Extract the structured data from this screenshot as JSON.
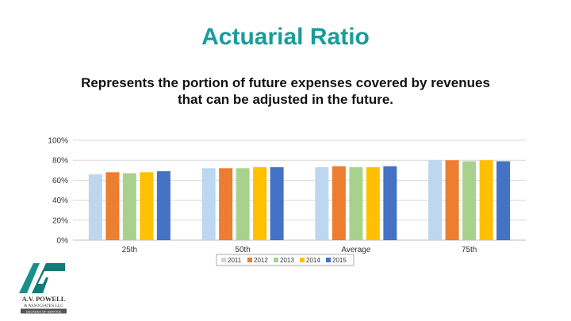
{
  "slide": {
    "title": "Actuarial Ratio",
    "subtitle_line1": "Represents the portion of future expenses covered by revenues",
    "subtitle_line2": "that can be adjusted in the future."
  },
  "logo": {
    "name": "A.V. POWELL",
    "line2": "& ASSOCIATES LLC",
    "tagline": "DECADES OF SERVICE"
  },
  "chart_data": {
    "type": "bar",
    "categories": [
      "25th",
      "50th",
      "Average",
      "75th"
    ],
    "series": [
      {
        "name": "2011",
        "color": "#bdd7ee",
        "values": [
          66,
          72,
          73,
          80
        ]
      },
      {
        "name": "2012",
        "color": "#ed7d31",
        "values": [
          68,
          72,
          74,
          80
        ]
      },
      {
        "name": "2013",
        "color": "#a9d18e",
        "values": [
          67,
          72,
          73,
          79
        ]
      },
      {
        "name": "2014",
        "color": "#ffc000",
        "values": [
          68,
          73,
          73,
          80
        ]
      },
      {
        "name": "2015",
        "color": "#4472c4",
        "values": [
          69,
          73,
          74,
          79
        ]
      }
    ],
    "ylim": [
      0,
      100
    ],
    "yticks": [
      "0%",
      "20%",
      "40%",
      "60%",
      "80%",
      "100%"
    ],
    "grid": true,
    "legend": "bottom"
  }
}
